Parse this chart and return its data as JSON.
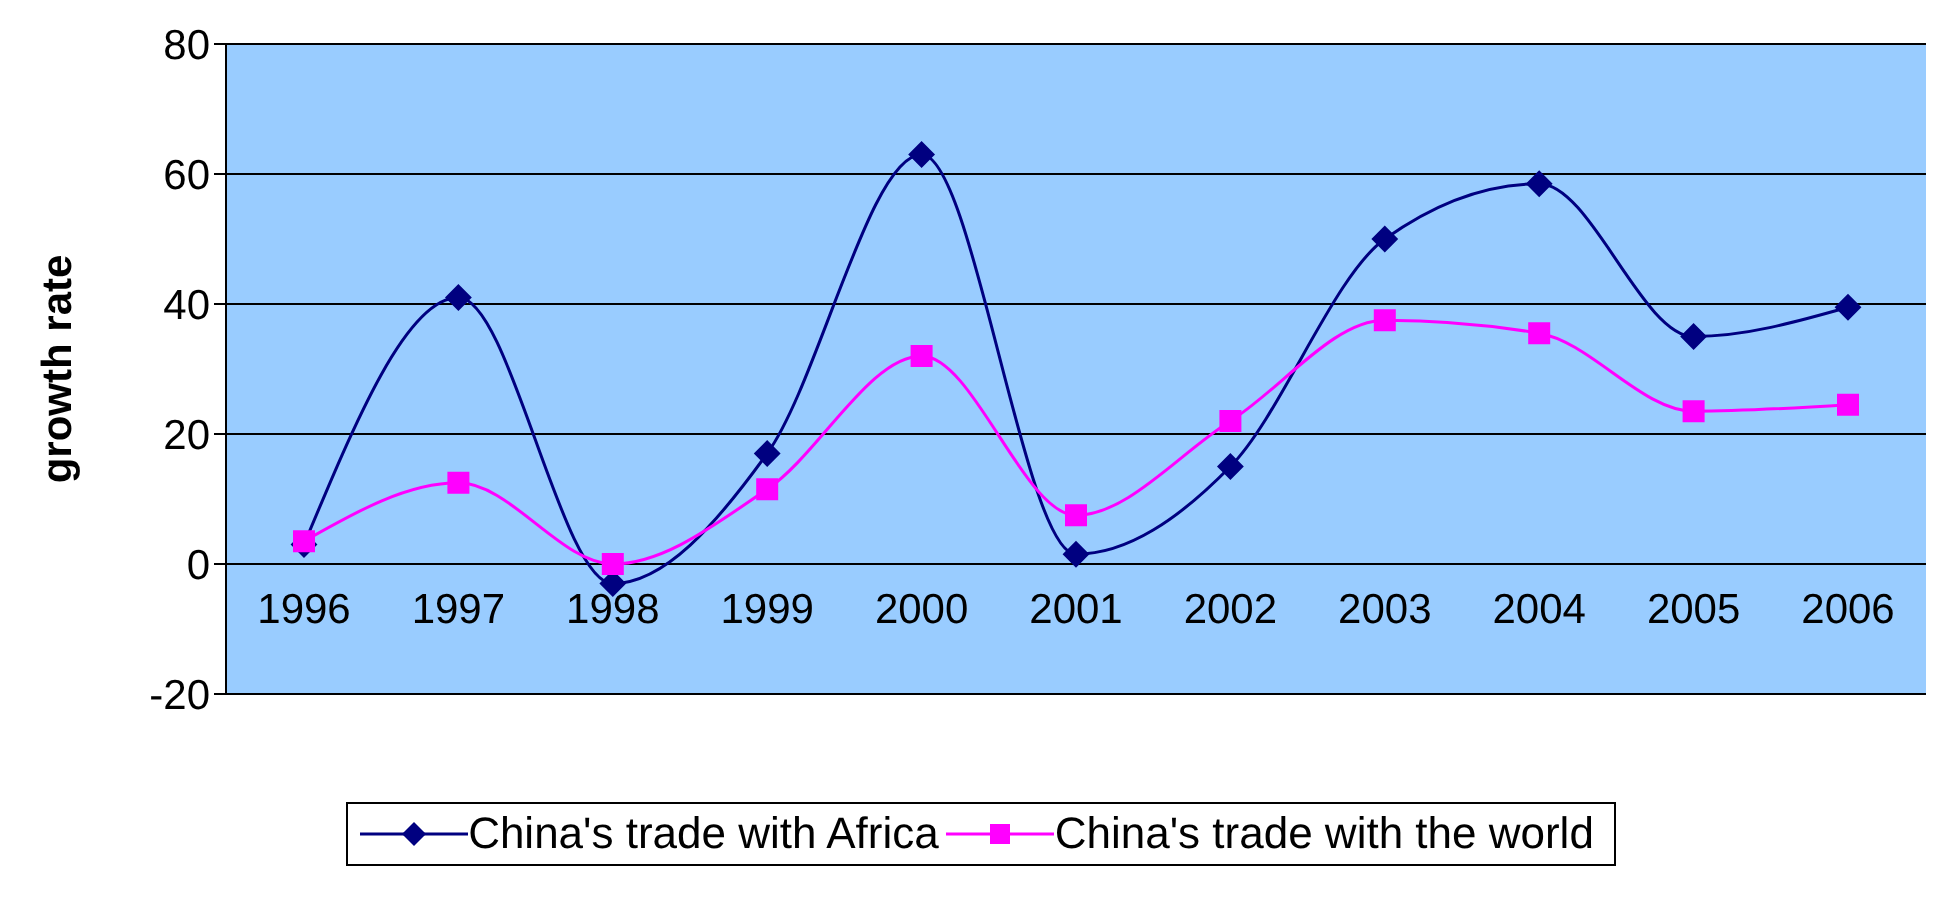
{
  "chart_data": {
    "type": "line",
    "ylabel": "growth rate",
    "categories": [
      "1996",
      "1997",
      "1998",
      "1999",
      "2000",
      "2001",
      "2002",
      "2003",
      "2004",
      "2005",
      "2006"
    ],
    "series": [
      {
        "name": "China's trade with Africa",
        "color": "#000080",
        "marker": "diamond",
        "values": [
          3,
          41,
          -3,
          17,
          63,
          1.5,
          15,
          50,
          58.5,
          35,
          39.5
        ]
      },
      {
        "name": "China's trade with the world",
        "color": "#ff00ff",
        "marker": "square",
        "values": [
          3.5,
          12.5,
          0,
          11.5,
          32,
          7.5,
          22,
          37.5,
          35.5,
          23.5,
          24.5
        ]
      }
    ],
    "ylim": [
      -20,
      80
    ],
    "yticks": [
      -20,
      0,
      20,
      40,
      60,
      80
    ],
    "grid": "y",
    "legend": "bottom"
  }
}
